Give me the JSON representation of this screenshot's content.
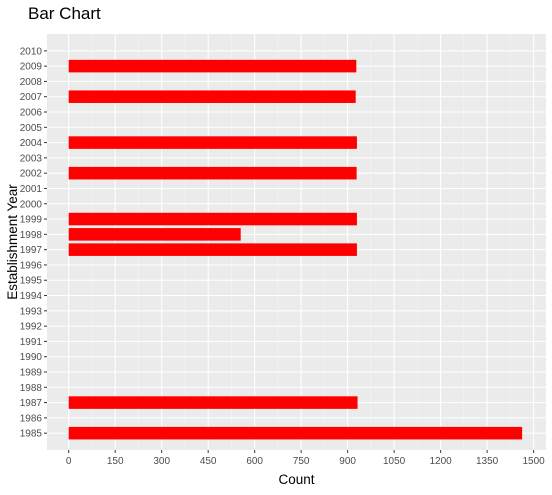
{
  "chart_data": {
    "type": "bar",
    "orientation": "horizontal",
    "title": "Bar Chart",
    "xlabel": "Count",
    "ylabel": "Establishment Year",
    "categories": [
      "1985",
      "1986",
      "1987",
      "1988",
      "1989",
      "1990",
      "1991",
      "1992",
      "1993",
      "1994",
      "1995",
      "1996",
      "1997",
      "1998",
      "1999",
      "2000",
      "2001",
      "2002",
      "2003",
      "2004",
      "2005",
      "2006",
      "2007",
      "2008",
      "2009",
      "2010"
    ],
    "values": [
      1463,
      0,
      932,
      0,
      0,
      0,
      0,
      0,
      0,
      0,
      0,
      0,
      930,
      555,
      930,
      0,
      0,
      929,
      0,
      930,
      0,
      0,
      926,
      0,
      928,
      0
    ],
    "xticks": [
      0,
      150,
      300,
      450,
      600,
      750,
      900,
      1050,
      1200,
      1350,
      1500
    ],
    "xlim": [
      -70,
      1540
    ],
    "bar_color": "#ff0000",
    "panel_color": "#ebebeb",
    "grid": true,
    "legend": "none"
  }
}
